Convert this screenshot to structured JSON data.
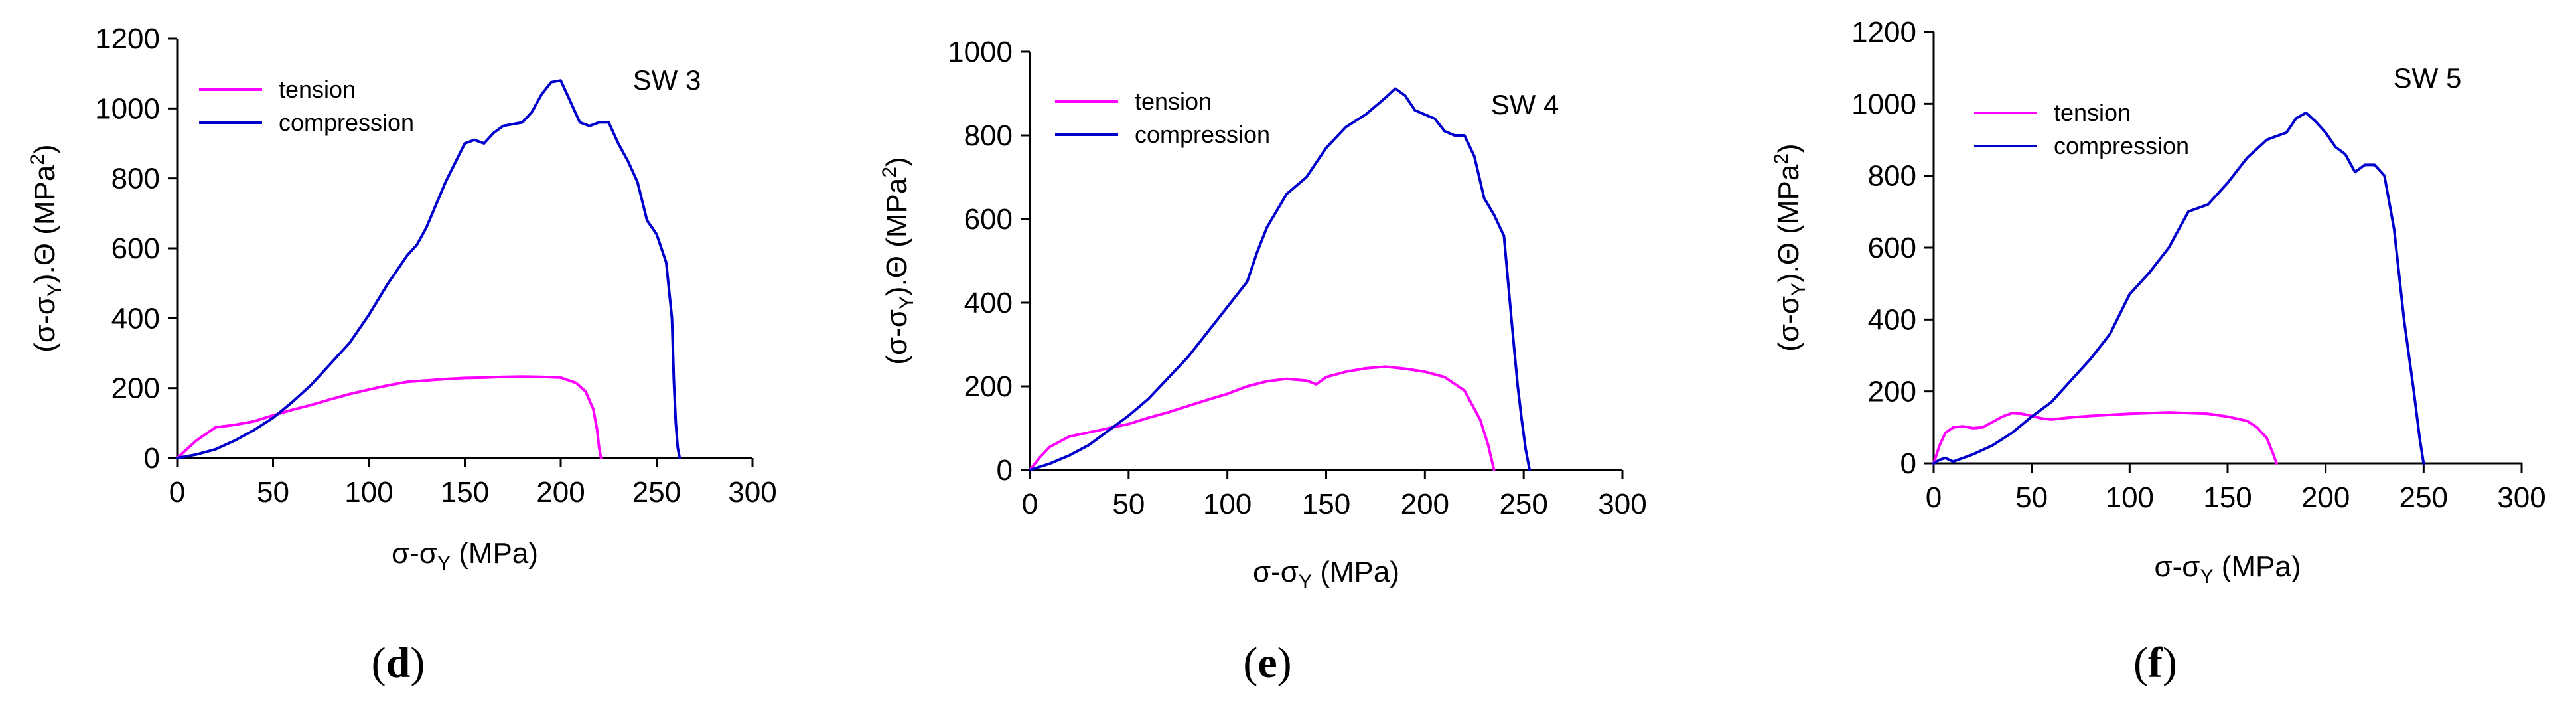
{
  "chart_data": [
    {
      "type": "line",
      "panel_label_open": "(",
      "panel_label": "d",
      "panel_label_close": ")",
      "title": "SW 3",
      "xlabel": "σ-σ",
      "xlabel_sub": "Y",
      "xlabel_unit": " (MPa)",
      "ylabel_pre": "(σ-σ",
      "ylabel_sub": "Y",
      "ylabel_mid": ").Θ (MPa",
      "ylabel_sup": "2",
      "ylabel_post": ")",
      "xlim": [
        0,
        300
      ],
      "ylim": [
        0,
        1200
      ],
      "xticks": [
        "0",
        "50",
        "100",
        "150",
        "200",
        "250",
        "300"
      ],
      "yticks": [
        "0",
        "200",
        "400",
        "600",
        "800",
        "1000",
        "1200"
      ],
      "legend_position": "top-left",
      "series": [
        {
          "name": "tension",
          "color": "#ff00ff",
          "x": [
            0,
            5,
            10,
            20,
            30,
            40,
            50,
            60,
            70,
            80,
            90,
            100,
            110,
            120,
            130,
            140,
            150,
            160,
            170,
            180,
            190,
            200,
            208,
            213,
            217,
            219,
            220,
            221
          ],
          "y": [
            0,
            25,
            50,
            88,
            95,
            105,
            122,
            138,
            152,
            168,
            183,
            196,
            208,
            218,
            222,
            226,
            229,
            230,
            232,
            233,
            232,
            230,
            215,
            190,
            140,
            80,
            30,
            0
          ]
        },
        {
          "name": "compression",
          "color": "#0000cc",
          "x": [
            0,
            10,
            20,
            30,
            40,
            50,
            60,
            70,
            80,
            90,
            100,
            110,
            120,
            125,
            130,
            140,
            150,
            155,
            160,
            165,
            170,
            180,
            185,
            190,
            195,
            200,
            205,
            210,
            215,
            220,
            225,
            230,
            235,
            240,
            245,
            250,
            255,
            258,
            259,
            260,
            261,
            262
          ],
          "y": [
            0,
            10,
            25,
            50,
            80,
            115,
            160,
            210,
            270,
            330,
            410,
            500,
            580,
            610,
            660,
            790,
            900,
            910,
            900,
            930,
            950,
            960,
            990,
            1040,
            1075,
            1080,
            1020,
            960,
            950,
            960,
            960,
            900,
            850,
            790,
            680,
            640,
            560,
            400,
            220,
            100,
            30,
            0
          ]
        }
      ]
    },
    {
      "type": "line",
      "panel_label_open": "(",
      "panel_label": "e",
      "panel_label_close": ")",
      "title": "SW 4",
      "xlabel": "σ-σ",
      "xlabel_sub": "Y",
      "xlabel_unit": " (MPa)",
      "ylabel_pre": "(σ-σ",
      "ylabel_sub": "Y",
      "ylabel_mid": ").Θ (MPa",
      "ylabel_sup": "2",
      "ylabel_post": ")",
      "xlim": [
        0,
        300
      ],
      "ylim": [
        0,
        1000
      ],
      "xticks": [
        "0",
        "50",
        "100",
        "150",
        "200",
        "250",
        "300"
      ],
      "yticks": [
        "0",
        "200",
        "400",
        "600",
        "800",
        "1000"
      ],
      "legend_position": "top-left",
      "series": [
        {
          "name": "tension",
          "color": "#ff00ff",
          "x": [
            0,
            5,
            10,
            20,
            30,
            40,
            50,
            60,
            70,
            80,
            90,
            100,
            110,
            120,
            130,
            140,
            145,
            150,
            160,
            170,
            180,
            190,
            200,
            210,
            220,
            228,
            232,
            234,
            235
          ],
          "y": [
            0,
            30,
            55,
            80,
            90,
            100,
            110,
            125,
            138,
            153,
            168,
            182,
            200,
            212,
            218,
            214,
            205,
            222,
            235,
            243,
            247,
            242,
            235,
            222,
            190,
            120,
            60,
            20,
            0
          ]
        },
        {
          "name": "compression",
          "color": "#0000cc",
          "x": [
            0,
            10,
            20,
            30,
            40,
            50,
            60,
            70,
            80,
            90,
            100,
            110,
            115,
            120,
            125,
            130,
            140,
            150,
            160,
            170,
            180,
            185,
            190,
            195,
            200,
            205,
            210,
            215,
            220,
            225,
            230,
            235,
            240,
            244,
            247,
            249,
            251,
            253
          ],
          "y": [
            0,
            15,
            35,
            60,
            95,
            130,
            170,
            220,
            270,
            330,
            390,
            450,
            520,
            580,
            620,
            660,
            700,
            770,
            820,
            850,
            890,
            912,
            895,
            860,
            850,
            840,
            810,
            800,
            800,
            750,
            650,
            610,
            560,
            350,
            200,
            120,
            50,
            0
          ]
        }
      ]
    },
    {
      "type": "line",
      "panel_label_open": "(",
      "panel_label": "f",
      "panel_label_close": ")",
      "title": "SW 5",
      "xlabel": "σ-σ",
      "xlabel_sub": "Y",
      "xlabel_unit": " (MPa)",
      "ylabel_pre": "(σ-σ",
      "ylabel_sub": "Y",
      "ylabel_mid": ").Θ (MPa",
      "ylabel_sup": "2",
      "ylabel_post": ")",
      "xlim": [
        0,
        300
      ],
      "ylim": [
        0,
        1200
      ],
      "xticks": [
        "0",
        "50",
        "100",
        "150",
        "200",
        "250",
        "300"
      ],
      "yticks": [
        "0",
        "200",
        "400",
        "600",
        "800",
        "1000",
        "1200"
      ],
      "legend_position": "top-left",
      "series": [
        {
          "name": "tension",
          "color": "#ff00ff",
          "x": [
            0,
            3,
            6,
            10,
            15,
            20,
            25,
            30,
            35,
            40,
            45,
            50,
            55,
            60,
            70,
            80,
            90,
            100,
            110,
            120,
            130,
            140,
            150,
            160,
            165,
            170,
            173,
            175
          ],
          "y": [
            0,
            50,
            85,
            100,
            103,
            98,
            100,
            115,
            130,
            140,
            138,
            132,
            125,
            122,
            128,
            132,
            135,
            138,
            140,
            142,
            140,
            138,
            130,
            118,
            100,
            70,
            30,
            0
          ]
        },
        {
          "name": "compression",
          "color": "#0000cc",
          "x": [
            0,
            3,
            6,
            10,
            15,
            20,
            30,
            40,
            50,
            60,
            70,
            80,
            90,
            100,
            110,
            120,
            130,
            140,
            150,
            160,
            170,
            180,
            185,
            190,
            195,
            200,
            205,
            210,
            215,
            220,
            225,
            230,
            235,
            240,
            245,
            248,
            250
          ],
          "y": [
            0,
            10,
            15,
            5,
            15,
            25,
            50,
            85,
            130,
            170,
            230,
            290,
            360,
            470,
            530,
            600,
            700,
            720,
            780,
            850,
            900,
            920,
            960,
            975,
            950,
            920,
            880,
            860,
            810,
            830,
            830,
            800,
            650,
            400,
            200,
            70,
            0
          ]
        }
      ]
    }
  ]
}
